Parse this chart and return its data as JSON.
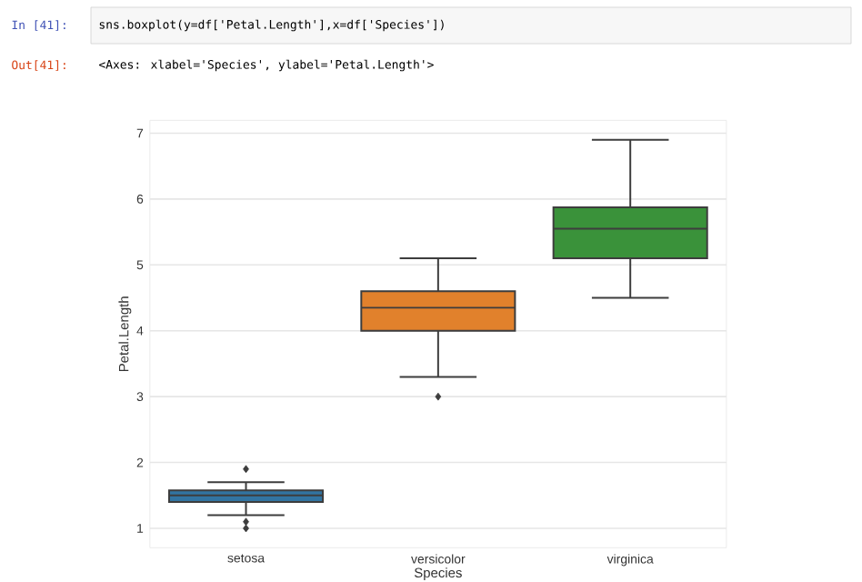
{
  "chart_data": {
    "type": "box",
    "categories": [
      "setosa",
      "versicolor",
      "virginica"
    ],
    "boxes": [
      {
        "low": 1.2,
        "q1": 1.4,
        "median": 1.5,
        "q3": 1.575,
        "high": 1.7,
        "outliers": [
          1.0,
          1.1,
          1.9
        ]
      },
      {
        "low": 3.3,
        "q1": 4.0,
        "median": 4.35,
        "q3": 4.6,
        "high": 5.1,
        "outliers": [
          3.0
        ]
      },
      {
        "low": 4.5,
        "q1": 5.1,
        "median": 5.55,
        "q3": 5.875,
        "high": 6.9
      }
    ],
    "colors": [
      "#3274a1",
      "#e1812c",
      "#3a923a"
    ],
    "xlabel": "Species",
    "ylabel": "Petal.Length",
    "ylim": [
      0.705,
      7.195
    ],
    "yticks": [
      1,
      2,
      3,
      4,
      5,
      6,
      7
    ],
    "grid": "y",
    "marker": "diamond",
    "annotations": [
      "In [41]:",
      "sns.boxplot(y=df['Petal.Length'],x=df['Species'])",
      "Out[41]:",
      "<Axes: xlabel='Species', ylabel='Petal.Length'>"
    ]
  }
}
